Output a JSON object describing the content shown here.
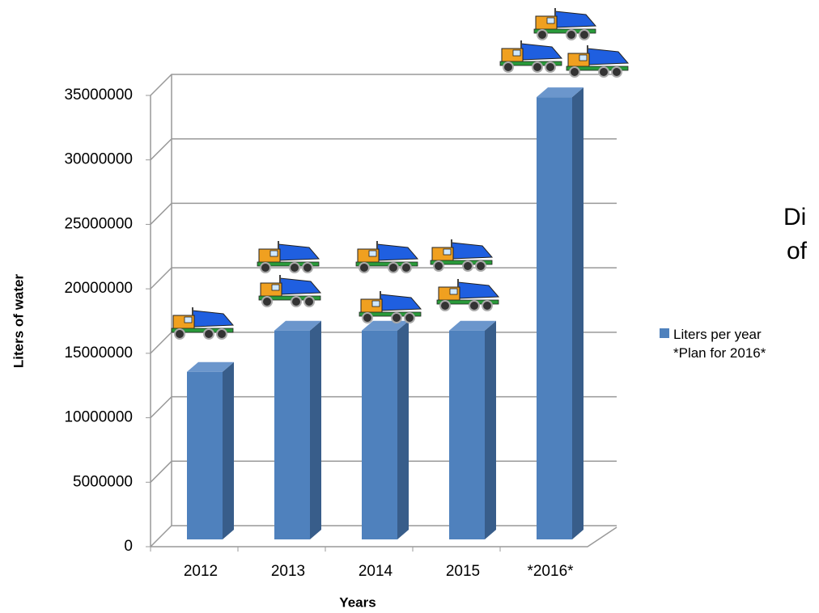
{
  "chart_data": {
    "type": "bar",
    "title_lines": [
      "Di",
      "of"
    ],
    "x_label": "Years",
    "y_label": "Liters of water",
    "categories": [
      "2012",
      "2013",
      "2014",
      "2015",
      "*2016*"
    ],
    "series": [
      {
        "name": "Liters per year *Plan for 2016*",
        "color": "#4f81bd",
        "values": [
          13000000,
          16200000,
          16200000,
          16200000,
          34300000
        ]
      }
    ],
    "ylim": [
      0,
      35000000
    ],
    "yticks": [
      0,
      5000000,
      10000000,
      15000000,
      20000000,
      25000000,
      30000000,
      35000000
    ],
    "grid": true
  }
}
